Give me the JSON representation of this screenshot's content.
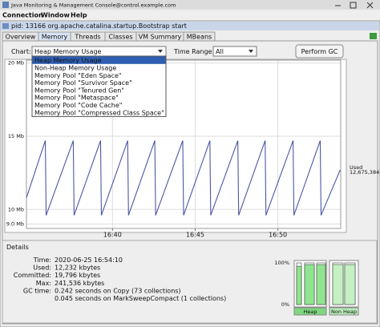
{
  "window": {
    "title": "Java Monitoring & Management Console@control.example.com",
    "menu": [
      "Connection",
      "Window",
      "Help"
    ]
  },
  "frame": {
    "title": "pid: 13166 org.apache.catalina.startup.Bootstrap start"
  },
  "tabs": [
    "Overview",
    "Memory",
    "Threads",
    "Classes",
    "VM Summary",
    "MBeans"
  ],
  "controls": {
    "chart_label": "Chart:",
    "chart_value": "Heap Memory Usage",
    "time_range_label": "Time Range:",
    "time_range_value": "All",
    "button": "Perform GC"
  },
  "dropdown": [
    "Heap Memory Usage",
    "Non-Heap Memory Usage",
    "Memory Pool \"Eden Space\"",
    "Memory Pool \"Survivor Space\"",
    "Memory Pool \"Tenured Gen\"",
    "Memory Pool \"Metaspace\"",
    "Memory Pool \"Code Cache\"",
    "Memory Pool \"Compressed Class Space\""
  ],
  "chart_data": {
    "type": "line",
    "x": [
      34.8,
      35.94,
      35.99,
      37.63,
      37.68,
      39.28,
      39.33,
      40.92,
      40.97,
      42.56,
      42.61,
      44.25,
      44.3,
      45.89,
      45.94,
      47.58,
      47.63,
      49.23,
      49.28,
      50.92,
      50.97,
      52.56,
      52.61,
      53.77
    ],
    "series": [
      {
        "name": "Used",
        "color": "#4b57a6",
        "values": [
          10.8,
          14.7,
          9.6,
          14.7,
          9.6,
          14.7,
          9.6,
          14.7,
          9.6,
          14.7,
          9.6,
          14.7,
          9.6,
          14.7,
          9.6,
          14.7,
          9.6,
          14.7,
          9.6,
          14.7,
          9.6,
          14.7,
          9.6,
          12.7
        ]
      }
    ],
    "annotation": "12,675,384",
    "xlim": [
      34.8,
      53.8
    ],
    "xticks": [
      {
        "value": 40,
        "label": "16:40"
      },
      {
        "value": 45,
        "label": "16:45"
      },
      {
        "value": 50,
        "label": "16:50"
      }
    ],
    "ylim": [
      8.7,
      20.2
    ],
    "yticks": [
      {
        "value": 20,
        "label": "20 Mb"
      },
      {
        "value": 15,
        "label": "15 Mb"
      },
      {
        "value": 10,
        "label": "10 Mb"
      },
      {
        "value": 9,
        "label": "9.0 Mb"
      }
    ],
    "grid": true
  },
  "details": {
    "title": "Details",
    "rows": [
      [
        "Time:",
        "2020-06-25 16:54:10"
      ],
      [
        "Used:",
        "12,232 kbytes"
      ],
      [
        "Committed:",
        "19,796 kbytes"
      ],
      [
        "Max:",
        "241,536 kbytes"
      ]
    ],
    "gc": {
      "label": "GC time:",
      "lines": [
        "0.242 seconds on Copy (73 collections)",
        "0.045 seconds on MarkSweepCompact (1 collections)"
      ]
    }
  },
  "pools": {
    "ylim": [
      0,
      100
    ],
    "yticks": [
      {
        "value": 100,
        "label": "100%"
      },
      {
        "value": 0,
        "label": "0%"
      }
    ],
    "groups": [
      {
        "name": "Heap",
        "values": [
          92,
          96,
          96
        ]
      },
      {
        "name": "Non Heap",
        "values": [
          96,
          96
        ]
      }
    ]
  }
}
